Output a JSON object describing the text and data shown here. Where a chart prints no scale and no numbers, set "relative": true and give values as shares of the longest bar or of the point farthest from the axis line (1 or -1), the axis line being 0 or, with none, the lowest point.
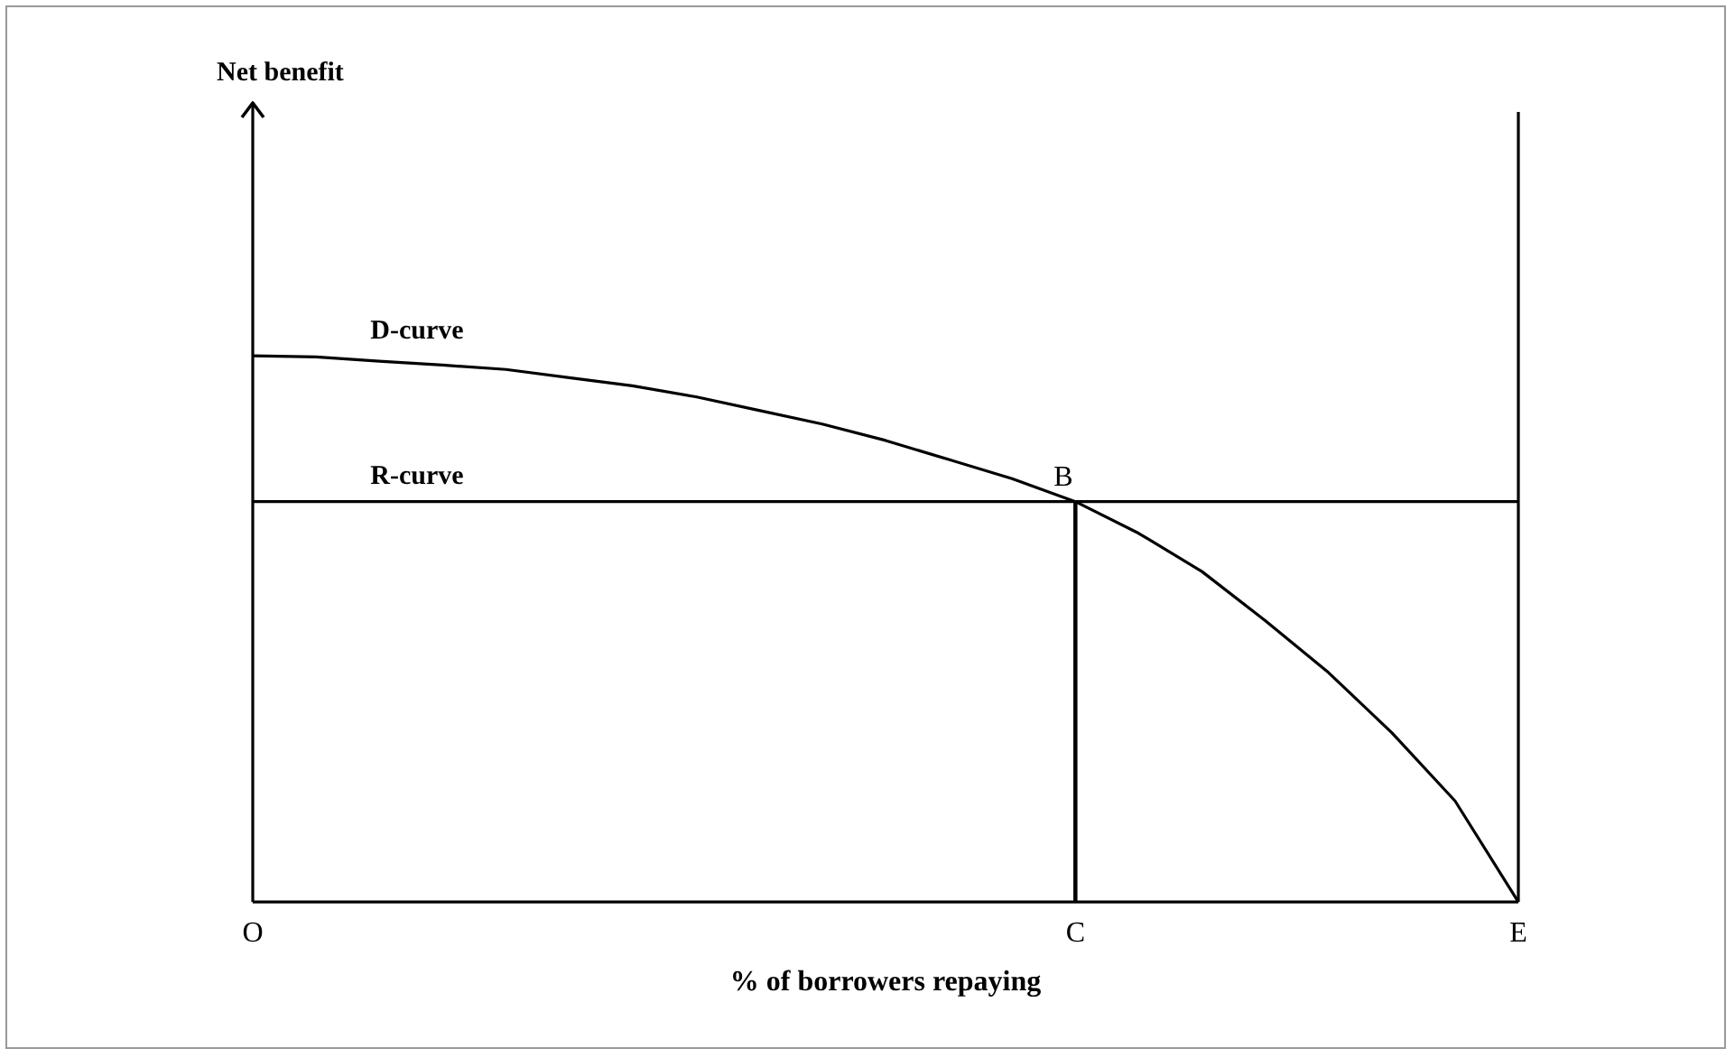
{
  "chart_data": {
    "type": "line",
    "relative": true,
    "xlabel": "% of borrowers repaying",
    "categories": [
      "O",
      null,
      null,
      null,
      null,
      null,
      null,
      null,
      null,
      null,
      null,
      null,
      null,
      "C",
      null,
      null,
      null,
      null,
      null,
      null,
      "E"
    ],
    "series": [
      {
        "name": "D-curve",
        "color": "#000000",
        "values": [
          1,
          0.998,
          0.99,
          0.983,
          0.975,
          0.96,
          0.945,
          0.925,
          0.9,
          0.875,
          0.845,
          0.81,
          0.775,
          0.733,
          0.675,
          0.605,
          0.515,
          0.42,
          0.31,
          0.185,
          0
        ]
      },
      {
        "name": "R-curve",
        "color": "#000000",
        "values": [
          0.733,
          0.733,
          0.733,
          0.733,
          0.733,
          0.733,
          0.733,
          0.733,
          0.733,
          0.733,
          0.733,
          0.733,
          0.733,
          0.733,
          0.733,
          0.733,
          0.733,
          0.733,
          0.733,
          0.733,
          0.733
        ]
      },
      {
        "type": "bar",
        "color": "#000000",
        "values": [
          null,
          null,
          null,
          null,
          null,
          null,
          null,
          null,
          null,
          null,
          null,
          null,
          null,
          0.733,
          null,
          null,
          null,
          null,
          null,
          null,
          null
        ]
      }
    ],
    "ref_lines": [
      {
        "axis": "x",
        "value": "E",
        "color": "#000000"
      }
    ],
    "annotations": [
      "Net benefit",
      {
        "text": "B",
        "x": "C",
        "y": 0.733
      }
    ],
    "legend": false,
    "marker": "none",
    "line_style": "solid"
  }
}
